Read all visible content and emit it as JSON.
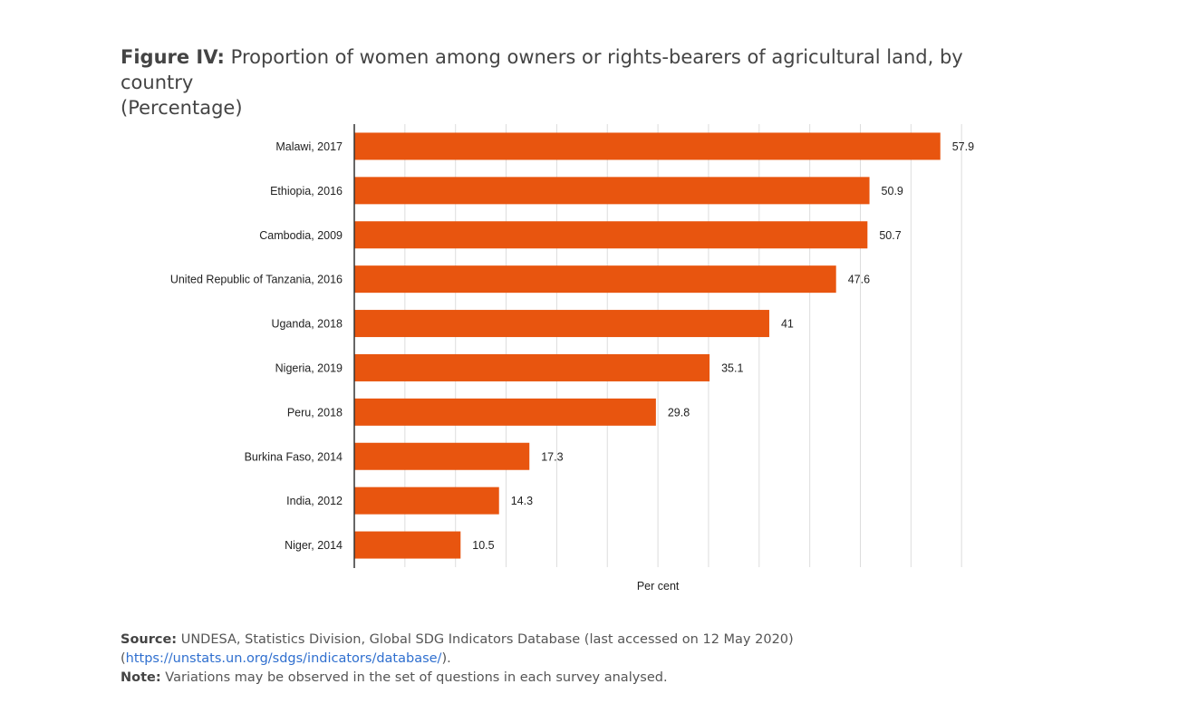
{
  "header": {
    "title_lead": "Figure IV:",
    "title_text": "Proportion of women among owners or rights-bearers of agricultural land, by country",
    "title_unit": "(Percentage)"
  },
  "chart_data": {
    "type": "bar",
    "orientation": "horizontal",
    "categories": [
      "Malawi, 2017",
      "Ethiopia, 2016",
      "Cambodia, 2009",
      "United Republic of Tanzania, 2016",
      "Uganda, 2018",
      "Nigeria, 2019",
      "Peru, 2018",
      "Burkina Faso, 2014",
      "India, 2012",
      "Niger, 2014"
    ],
    "values": [
      57.9,
      50.9,
      50.7,
      47.6,
      41,
      35.1,
      29.8,
      17.3,
      14.3,
      10.5
    ],
    "data_labels": [
      "57.9",
      "50.9",
      "50.7",
      "47.6",
      "41",
      "35.1",
      "29.8",
      "17.3",
      "14.3",
      "10.5"
    ],
    "xlabel": "Per cent",
    "xlim": [
      0,
      60
    ],
    "grid": true,
    "gridline_step": 5,
    "bar_color": "#e8550f",
    "grid_color": "#dddddd",
    "axis_color": "#333333"
  },
  "footer": {
    "source_label": "Source:",
    "source_text": "UNDESA, Statistics Division, Global SDG Indicators Database (last accessed on 12 May 2020)",
    "source_paren_open": "(",
    "source_link": "https://unstats.un.org/sdgs/indicators/database/",
    "source_paren_close": ").",
    "note_label": "Note:",
    "note_text": "Variations may be observed in the set of questions in each survey analysed."
  }
}
